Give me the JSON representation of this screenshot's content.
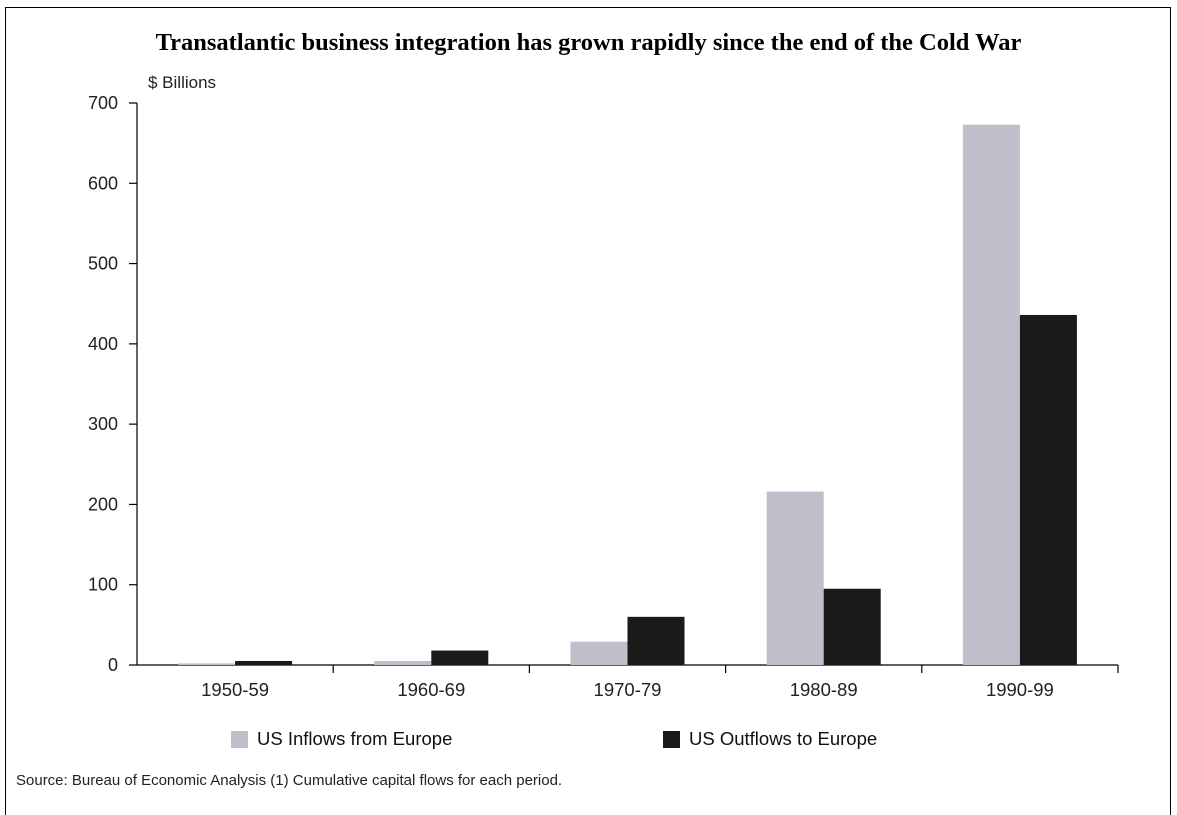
{
  "chart_data": {
    "type": "bar",
    "title": "Transatlantic business integration has grown rapidly since the end of the Cold War",
    "unit_label": "$ Billions",
    "xlabel": "",
    "ylabel": "$ Billions",
    "categories": [
      "1950-59",
      "1960-69",
      "1970-79",
      "1980-89",
      "1990-99"
    ],
    "series": [
      {
        "name": "US Inflows from Europe",
        "color": "#c0bfc9",
        "values": [
          2,
          5,
          29,
          216,
          673
        ]
      },
      {
        "name": "US Outflows to Europe",
        "color": "#1a1a1a",
        "values": [
          5,
          18,
          60,
          95,
          436
        ]
      }
    ],
    "ylim": [
      0,
      700
    ],
    "yticks": [
      "0",
      "100",
      "200",
      "300",
      "400",
      "500",
      "600",
      "700"
    ],
    "grid": false,
    "legend_position": "bottom",
    "source": "Source: Bureau of Economic Analysis (1) Cumulative capital flows for each period."
  }
}
